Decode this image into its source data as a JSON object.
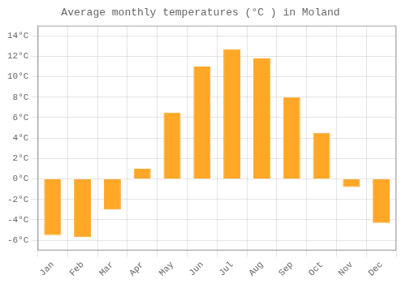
{
  "chart_data": {
    "type": "bar",
    "title": "Average monthly temperatures (°C ) in Moland",
    "categories": [
      "Jan",
      "Feb",
      "Mar",
      "Apr",
      "May",
      "Jun",
      "Jul",
      "Aug",
      "Sep",
      "Oct",
      "Nov",
      "Dec"
    ],
    "values": [
      -5.5,
      -5.7,
      -3.0,
      1.0,
      6.5,
      11.0,
      12.7,
      11.8,
      8.0,
      4.5,
      -0.8,
      -4.3
    ],
    "color": "#FFA726",
    "ylim": [
      -7,
      15
    ],
    "yticks": [
      {
        "value": -6,
        "label": "-6°C"
      },
      {
        "value": -4,
        "label": "-4°C"
      },
      {
        "value": -2,
        "label": "-2°C"
      },
      {
        "value": 0,
        "label": "0°C"
      },
      {
        "value": 2,
        "label": "2°C"
      },
      {
        "value": 4,
        "label": "4°C"
      },
      {
        "value": 6,
        "label": "6°C"
      },
      {
        "value": 8,
        "label": "8°C"
      },
      {
        "value": 10,
        "label": "10°C"
      },
      {
        "value": 12,
        "label": "12°C"
      },
      {
        "value": 14,
        "label": "14°C"
      }
    ],
    "grid": true
  }
}
